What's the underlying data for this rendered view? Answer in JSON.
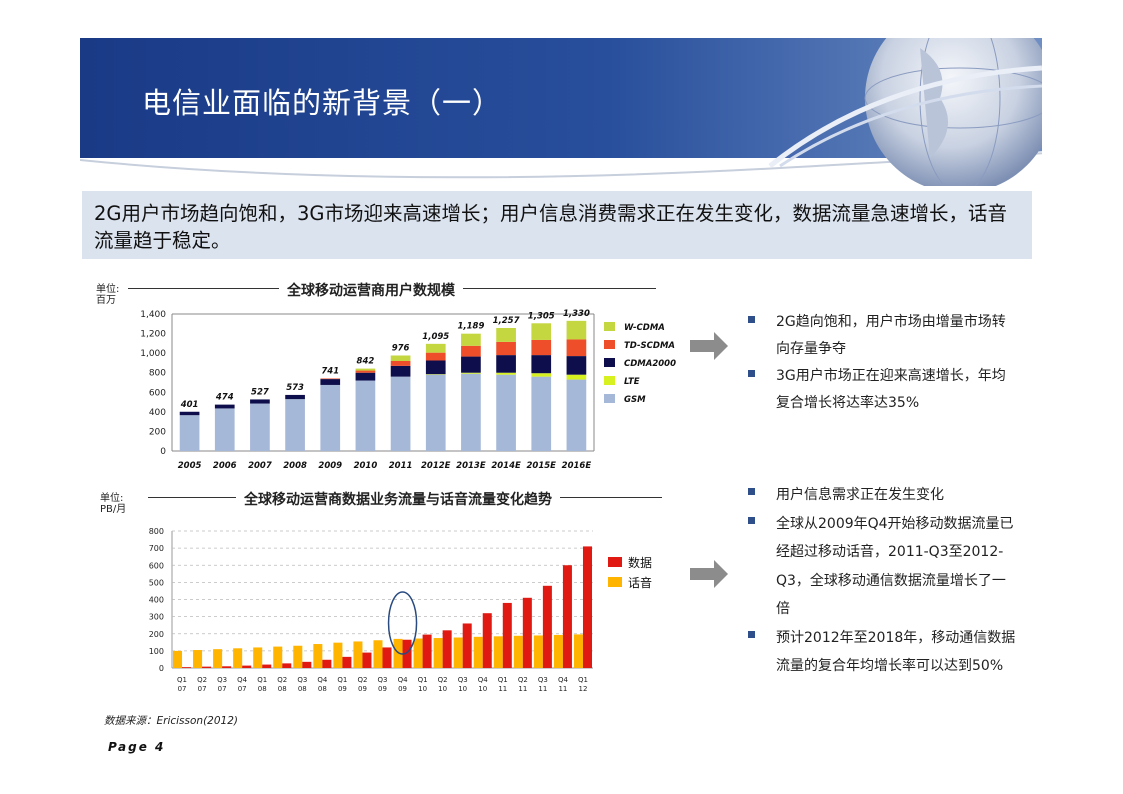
{
  "header": {
    "title": "电信业面临的新背景（一）"
  },
  "subtitle": "2G用户市场趋向饱和，3G市场迎来高速增长；用户信息消费需求正在发生变化，数据流量急速增长，话音流量趋于稳定。",
  "chart1_unit": [
    "单位:",
    "百万"
  ],
  "chart2_unit": [
    "单位:",
    "PB/月"
  ],
  "chart_data": [
    {
      "type": "bar",
      "stacked": true,
      "title": "全球移动运营商用户数规模",
      "categories": [
        "2005",
        "2006",
        "2007",
        "2008",
        "2009",
        "2010",
        "2011",
        "2012E",
        "2013E",
        "2014E",
        "2015E",
        "2016E"
      ],
      "series": [
        {
          "name": "GSM",
          "color": "#a6b8d8",
          "values": [
            366,
            435,
            485,
            530,
            675,
            720,
            760,
            780,
            790,
            780,
            760,
            730
          ]
        },
        {
          "name": "LTE",
          "color": "#d6f020",
          "values": [
            0,
            0,
            0,
            0,
            0,
            0,
            0,
            5,
            10,
            20,
            35,
            50
          ]
        },
        {
          "name": "CDMA2000",
          "color": "#0e0e4c",
          "values": [
            35,
            39,
            42,
            43,
            60,
            80,
            110,
            140,
            165,
            180,
            185,
            190
          ]
        },
        {
          "name": "TD-SCDMA",
          "color": "#ee4e2a",
          "values": [
            0,
            0,
            0,
            0,
            6,
            22,
            50,
            80,
            110,
            135,
            155,
            170
          ]
        },
        {
          "name": "W-CDMA",
          "color": "#c4d640",
          "values": [
            0,
            0,
            0,
            0,
            0,
            20,
            56,
            90,
            124,
            142,
            170,
            190
          ]
        }
      ],
      "totals": [
        "401",
        "474",
        "527",
        "573",
        "741",
        "842",
        "976",
        "1,095",
        "1,189",
        "1,257",
        "1,305",
        "1,330"
      ],
      "legend_order": [
        "W-CDMA",
        "TD-SCDMA",
        "CDMA2000",
        "LTE",
        "GSM"
      ],
      "ylim": [
        0,
        1400
      ],
      "yticks": [
        "0",
        "200",
        "400",
        "600",
        "800",
        "1,000",
        "1,200",
        "1,400"
      ],
      "legend_position": "right"
    },
    {
      "type": "bar",
      "title": "全球移动运营商数据业务流量与话音流量变化趋势",
      "categories": [
        [
          "Q1",
          "07"
        ],
        [
          "Q2",
          "07"
        ],
        [
          "Q3",
          "07"
        ],
        [
          "Q4",
          "07"
        ],
        [
          "Q1",
          "08"
        ],
        [
          "Q2",
          "08"
        ],
        [
          "Q3",
          "08"
        ],
        [
          "Q4",
          "08"
        ],
        [
          "Q1",
          "09"
        ],
        [
          "Q2",
          "09"
        ],
        [
          "Q3",
          "09"
        ],
        [
          "Q4",
          "09"
        ],
        [
          "Q1",
          "10"
        ],
        [
          "Q2",
          "10"
        ],
        [
          "Q3",
          "10"
        ],
        [
          "Q4",
          "10"
        ],
        [
          "Q1",
          "11"
        ],
        [
          "Q2",
          "11"
        ],
        [
          "Q3",
          "11"
        ],
        [
          "Q4",
          "11"
        ],
        [
          "Q1",
          "12"
        ]
      ],
      "series": [
        {
          "name": "话音",
          "color": "#ffb400",
          "values": [
            100,
            105,
            110,
            115,
            120,
            125,
            130,
            140,
            148,
            155,
            162,
            170,
            172,
            175,
            178,
            182,
            185,
            188,
            190,
            193,
            196
          ]
        },
        {
          "name": "数据",
          "color": "#e01a12",
          "values": [
            5,
            8,
            10,
            14,
            20,
            27,
            36,
            48,
            65,
            90,
            120,
            165,
            195,
            220,
            260,
            320,
            380,
            410,
            480,
            600,
            710
          ]
        }
      ],
      "legend_order": [
        "数据",
        "话音"
      ],
      "ylim": [
        0,
        800
      ],
      "yticks": [
        "0",
        "100",
        "200",
        "300",
        "400",
        "500",
        "600",
        "700",
        "800"
      ],
      "annotation": "ellipse around Q4 09",
      "legend_position": "right"
    }
  ],
  "bullets_top": [
    "2G趋向饱和，用户市场由增量市场转向存量争夺",
    "3G用户市场正在迎来高速增长，年均复合增长将达率达35%"
  ],
  "bullets_bottom": [
    "用户信息需求正在发生变化",
    "全球从2009年Q4开始移动数据流量已经超过移动话音，2011-Q3至2012-Q3，全球移动通信数据流量增长了一倍",
    "预计2012年至2018年，移动通信数据流量的复合年均增长率可以达到50%"
  ],
  "source": "数据来源：Ericisson(2012)",
  "page": "Page   4"
}
